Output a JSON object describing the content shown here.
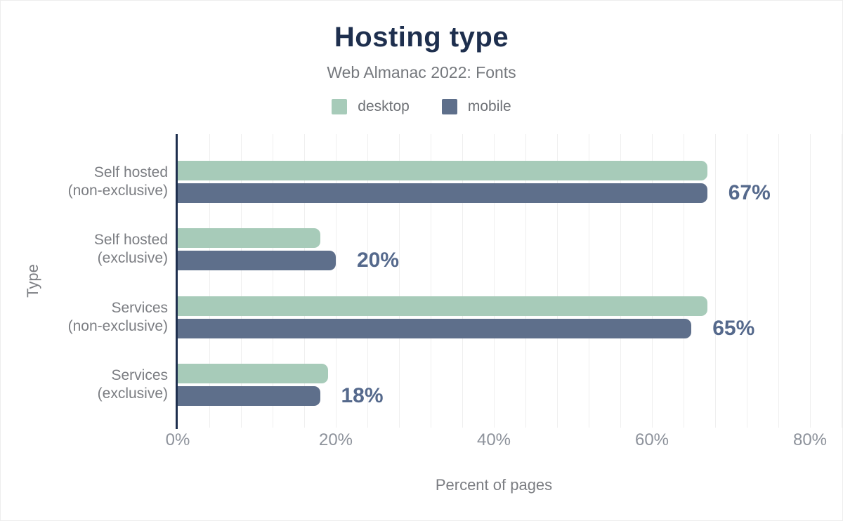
{
  "title": "Hosting type",
  "subtitle": "Web Almanac 2022: Fonts",
  "legend": [
    {
      "label": "desktop",
      "color": "#a7cbb9"
    },
    {
      "label": "mobile",
      "color": "#5e6f8b"
    }
  ],
  "colors": {
    "title_navy": "#1e2f4e",
    "axis_navy": "#1e2f4e",
    "desktop_green": "#a7cbb9",
    "mobile_slate": "#5e6f8b",
    "annotation_slate": "#55698c",
    "gridline": "#efefef",
    "label_gray": "#7b7d82"
  },
  "chart_data": {
    "type": "bar",
    "orientation": "horizontal",
    "title": "Hosting type",
    "subtitle": "Web Almanac 2022: Fonts",
    "xlabel": "Percent of pages",
    "ylabel": "Type",
    "categories": [
      "Self hosted\n(non-exclusive)",
      "Self hosted\n(exclusive)",
      "Services\n(non-exclusive)",
      "Services\n(exclusive)"
    ],
    "series": [
      {
        "name": "desktop",
        "color": "#a7cbb9",
        "values": [
          67,
          18,
          67,
          19
        ]
      },
      {
        "name": "mobile",
        "color": "#5e6f8b",
        "values": [
          67,
          20,
          65,
          18
        ]
      }
    ],
    "annotations": [
      "67%",
      "20%",
      "65%",
      "18%"
    ],
    "annotation_series": "mobile",
    "xlim": [
      0,
      84
    ],
    "xticks": [
      0,
      20,
      40,
      60,
      80
    ],
    "xtick_labels": [
      "0%",
      "20%",
      "40%",
      "60%",
      "80%"
    ],
    "grid": "vertical minor gridlines every 4%",
    "legend_position": "top"
  }
}
